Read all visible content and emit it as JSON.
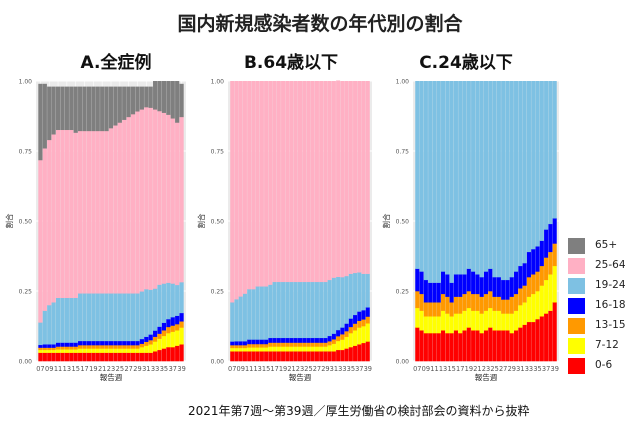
{
  "title": "国内新規感染者数の年代別の割合",
  "source_note": "2021年第7週～第39週／厚生労働省の検討部会の資料から抜粋",
  "chart_data": [
    {
      "type": "bar",
      "stacked": true,
      "title": "A.全症例",
      "xlabel": "報告週",
      "ylabel": "割合",
      "ylim": [
        0,
        1
      ],
      "yticks": [
        "0.00",
        "0.25",
        "0.50",
        "0.75",
        "1.00"
      ],
      "x": [
        7,
        8,
        9,
        10,
        11,
        12,
        13,
        14,
        15,
        16,
        17,
        18,
        19,
        20,
        21,
        22,
        23,
        24,
        25,
        26,
        27,
        28,
        29,
        30,
        31,
        32,
        33,
        34,
        35,
        36,
        37,
        38,
        39
      ],
      "x_tick_labels": [
        "07",
        "09",
        "11",
        "13",
        "15",
        "17",
        "19",
        "21",
        "23",
        "25",
        "27",
        "29",
        "31",
        "33",
        "35",
        "37",
        "39"
      ],
      "series": [
        {
          "name": "0-6",
          "color": "#ff0000",
          "values": [
            0.03,
            0.03,
            0.03,
            0.03,
            0.03,
            0.03,
            0.03,
            0.03,
            0.03,
            0.03,
            0.03,
            0.03,
            0.03,
            0.03,
            0.03,
            0.03,
            0.03,
            0.03,
            0.03,
            0.03,
            0.03,
            0.03,
            0.03,
            0.03,
            0.03,
            0.03,
            0.035,
            0.04,
            0.045,
            0.05,
            0.05,
            0.055,
            0.06
          ]
        },
        {
          "name": "7-12",
          "color": "#ffff00",
          "values": [
            0.01,
            0.01,
            0.01,
            0.01,
            0.012,
            0.012,
            0.012,
            0.012,
            0.012,
            0.015,
            0.015,
            0.015,
            0.015,
            0.015,
            0.015,
            0.015,
            0.015,
            0.015,
            0.015,
            0.015,
            0.015,
            0.015,
            0.015,
            0.02,
            0.025,
            0.03,
            0.035,
            0.04,
            0.045,
            0.05,
            0.055,
            0.055,
            0.06
          ]
        },
        {
          "name": "13-15",
          "color": "#ff9900",
          "values": [
            0.008,
            0.008,
            0.008,
            0.008,
            0.01,
            0.01,
            0.01,
            0.01,
            0.01,
            0.012,
            0.012,
            0.012,
            0.012,
            0.012,
            0.012,
            0.012,
            0.012,
            0.012,
            0.012,
            0.012,
            0.012,
            0.012,
            0.012,
            0.012,
            0.014,
            0.015,
            0.017,
            0.018,
            0.02,
            0.022,
            0.022,
            0.022,
            0.022
          ]
        },
        {
          "name": "16-18",
          "color": "#0000ff",
          "values": [
            0.01,
            0.012,
            0.012,
            0.012,
            0.014,
            0.014,
            0.014,
            0.014,
            0.014,
            0.015,
            0.015,
            0.015,
            0.015,
            0.015,
            0.015,
            0.015,
            0.015,
            0.015,
            0.015,
            0.015,
            0.015,
            0.015,
            0.015,
            0.017,
            0.018,
            0.02,
            0.022,
            0.025,
            0.027,
            0.028,
            0.03,
            0.03,
            0.03
          ]
        },
        {
          "name": "19-24",
          "color": "#7ec1e3",
          "values": [
            0.08,
            0.12,
            0.14,
            0.15,
            0.16,
            0.16,
            0.16,
            0.16,
            0.16,
            0.17,
            0.17,
            0.17,
            0.17,
            0.17,
            0.17,
            0.17,
            0.17,
            0.17,
            0.17,
            0.17,
            0.17,
            0.17,
            0.17,
            0.17,
            0.17,
            0.16,
            0.15,
            0.15,
            0.14,
            0.13,
            0.12,
            0.11,
            0.11
          ]
        },
        {
          "name": "25-64",
          "color": "#ffb0c4",
          "values": [
            0.58,
            0.58,
            0.59,
            0.6,
            0.6,
            0.6,
            0.6,
            0.6,
            0.59,
            0.58,
            0.58,
            0.58,
            0.58,
            0.58,
            0.58,
            0.58,
            0.59,
            0.6,
            0.61,
            0.62,
            0.63,
            0.64,
            0.65,
            0.65,
            0.65,
            0.65,
            0.64,
            0.62,
            0.61,
            0.6,
            0.59,
            0.58,
            0.59
          ]
        },
        {
          "name": "65+",
          "color": "#7f7f7f",
          "values": [
            0.272,
            0.23,
            0.19,
            0.17,
            0.154,
            0.154,
            0.154,
            0.154,
            0.164,
            0.158,
            0.158,
            0.158,
            0.158,
            0.158,
            0.158,
            0.158,
            0.148,
            0.138,
            0.128,
            0.118,
            0.108,
            0.098,
            0.088,
            0.081,
            0.073,
            0.075,
            0.101,
            0.107,
            0.113,
            0.12,
            0.133,
            0.148,
            0.118
          ]
        }
      ]
    },
    {
      "type": "bar",
      "stacked": true,
      "title": "B.64歳以下",
      "xlabel": "報告週",
      "ylabel": "割合",
      "ylim": [
        0,
        1
      ],
      "yticks": [
        "0.00",
        "0.25",
        "0.50",
        "0.75",
        "1.00"
      ],
      "x": [
        7,
        8,
        9,
        10,
        11,
        12,
        13,
        14,
        15,
        16,
        17,
        18,
        19,
        20,
        21,
        22,
        23,
        24,
        25,
        26,
        27,
        28,
        29,
        30,
        31,
        32,
        33,
        34,
        35,
        36,
        37,
        38,
        39
      ],
      "x_tick_labels": [
        "07",
        "09",
        "11",
        "13",
        "15",
        "17",
        "19",
        "21",
        "23",
        "25",
        "27",
        "29",
        "31",
        "33",
        "35",
        "37",
        "39"
      ],
      "series": [
        {
          "name": "0-6",
          "color": "#ff0000",
          "values": [
            0.035,
            0.035,
            0.035,
            0.035,
            0.035,
            0.035,
            0.035,
            0.035,
            0.035,
            0.035,
            0.035,
            0.035,
            0.035,
            0.035,
            0.035,
            0.035,
            0.035,
            0.035,
            0.035,
            0.035,
            0.035,
            0.035,
            0.035,
            0.035,
            0.035,
            0.04,
            0.04,
            0.045,
            0.05,
            0.055,
            0.06,
            0.065,
            0.07
          ]
        },
        {
          "name": "7-12",
          "color": "#ffff00",
          "values": [
            0.012,
            0.012,
            0.012,
            0.012,
            0.014,
            0.014,
            0.014,
            0.014,
            0.014,
            0.017,
            0.017,
            0.017,
            0.017,
            0.017,
            0.017,
            0.017,
            0.017,
            0.017,
            0.017,
            0.017,
            0.017,
            0.017,
            0.017,
            0.022,
            0.027,
            0.032,
            0.037,
            0.042,
            0.05,
            0.055,
            0.06,
            0.06,
            0.065
          ]
        },
        {
          "name": "13-15",
          "color": "#ff9900",
          "values": [
            0.01,
            0.01,
            0.01,
            0.01,
            0.012,
            0.012,
            0.012,
            0.012,
            0.012,
            0.014,
            0.014,
            0.014,
            0.014,
            0.014,
            0.014,
            0.014,
            0.014,
            0.014,
            0.014,
            0.014,
            0.014,
            0.014,
            0.014,
            0.014,
            0.016,
            0.017,
            0.019,
            0.02,
            0.022,
            0.024,
            0.024,
            0.024,
            0.024
          ]
        },
        {
          "name": "16-18",
          "color": "#0000ff",
          "values": [
            0.013,
            0.014,
            0.014,
            0.014,
            0.016,
            0.016,
            0.016,
            0.016,
            0.016,
            0.017,
            0.017,
            0.017,
            0.017,
            0.017,
            0.017,
            0.017,
            0.017,
            0.017,
            0.017,
            0.017,
            0.017,
            0.017,
            0.017,
            0.019,
            0.02,
            0.022,
            0.024,
            0.027,
            0.03,
            0.031,
            0.033,
            0.033,
            0.033
          ]
        },
        {
          "name": "19-24",
          "color": "#7ec1e3",
          "values": [
            0.14,
            0.15,
            0.16,
            0.17,
            0.18,
            0.18,
            0.19,
            0.19,
            0.19,
            0.19,
            0.2,
            0.2,
            0.2,
            0.2,
            0.2,
            0.2,
            0.2,
            0.2,
            0.2,
            0.2,
            0.2,
            0.2,
            0.2,
            0.2,
            0.2,
            0.19,
            0.18,
            0.17,
            0.16,
            0.15,
            0.14,
            0.13,
            0.12
          ]
        },
        {
          "name": "25-64",
          "color": "#ffb0c4",
          "values": [
            0.79,
            0.779,
            0.769,
            0.759,
            0.743,
            0.743,
            0.733,
            0.733,
            0.733,
            0.727,
            0.717,
            0.717,
            0.717,
            0.717,
            0.717,
            0.717,
            0.717,
            0.717,
            0.717,
            0.717,
            0.717,
            0.717,
            0.717,
            0.71,
            0.702,
            0.701,
            0.7,
            0.696,
            0.688,
            0.685,
            0.683,
            0.688,
            0.688
          ]
        }
      ]
    },
    {
      "type": "bar",
      "stacked": true,
      "title": "C.24歳以下",
      "xlabel": "報告週",
      "ylabel": "割合",
      "ylim": [
        0,
        1
      ],
      "yticks": [
        "0.00",
        "0.25",
        "0.50",
        "0.75",
        "1.00"
      ],
      "x": [
        7,
        8,
        9,
        10,
        11,
        12,
        13,
        14,
        15,
        16,
        17,
        18,
        19,
        20,
        21,
        22,
        23,
        24,
        25,
        26,
        27,
        28,
        29,
        30,
        31,
        32,
        33,
        34,
        35,
        36,
        37,
        38,
        39
      ],
      "x_tick_labels": [
        "07",
        "09",
        "11",
        "13",
        "15",
        "17",
        "19",
        "21",
        "23",
        "25",
        "27",
        "29",
        "31",
        "33",
        "35",
        "37",
        "39"
      ],
      "series": [
        {
          "name": "0-6",
          "color": "#ff0000",
          "values": [
            0.12,
            0.11,
            0.1,
            0.1,
            0.1,
            0.1,
            0.11,
            0.1,
            0.1,
            0.11,
            0.1,
            0.11,
            0.12,
            0.11,
            0.11,
            0.1,
            0.11,
            0.12,
            0.11,
            0.11,
            0.11,
            0.11,
            0.1,
            0.11,
            0.12,
            0.13,
            0.14,
            0.14,
            0.15,
            0.16,
            0.17,
            0.18,
            0.21
          ]
        },
        {
          "name": "7-12",
          "color": "#ffff00",
          "values": [
            0.07,
            0.07,
            0.06,
            0.06,
            0.06,
            0.06,
            0.07,
            0.07,
            0.06,
            0.06,
            0.07,
            0.07,
            0.07,
            0.07,
            0.07,
            0.07,
            0.07,
            0.07,
            0.07,
            0.07,
            0.06,
            0.06,
            0.07,
            0.07,
            0.08,
            0.08,
            0.09,
            0.1,
            0.1,
            0.11,
            0.12,
            0.13,
            0.13
          ]
        },
        {
          "name": "13-15",
          "color": "#ff9900",
          "values": [
            0.06,
            0.06,
            0.05,
            0.05,
            0.05,
            0.05,
            0.06,
            0.06,
            0.05,
            0.06,
            0.06,
            0.06,
            0.06,
            0.06,
            0.06,
            0.06,
            0.06,
            0.06,
            0.05,
            0.05,
            0.05,
            0.05,
            0.06,
            0.06,
            0.06,
            0.06,
            0.07,
            0.07,
            0.07,
            0.07,
            0.08,
            0.08,
            0.08
          ]
        },
        {
          "name": "16-18",
          "color": "#0000ff",
          "values": [
            0.08,
            0.08,
            0.08,
            0.07,
            0.07,
            0.07,
            0.08,
            0.08,
            0.07,
            0.08,
            0.08,
            0.07,
            0.08,
            0.08,
            0.07,
            0.07,
            0.08,
            0.08,
            0.07,
            0.07,
            0.07,
            0.07,
            0.07,
            0.08,
            0.08,
            0.08,
            0.09,
            0.09,
            0.09,
            0.09,
            0.1,
            0.1,
            0.09
          ]
        },
        {
          "name": "19-24",
          "color": "#7ec1e3",
          "values": [
            0.67,
            0.68,
            0.71,
            0.72,
            0.72,
            0.72,
            0.68,
            0.69,
            0.72,
            0.69,
            0.69,
            0.69,
            0.67,
            0.68,
            0.69,
            0.7,
            0.68,
            0.67,
            0.7,
            0.7,
            0.71,
            0.71,
            0.7,
            0.68,
            0.66,
            0.65,
            0.61,
            0.6,
            0.59,
            0.57,
            0.53,
            0.51,
            0.49
          ]
        }
      ]
    }
  ],
  "legend": [
    {
      "label": "65+",
      "color": "#7f7f7f"
    },
    {
      "label": "25-64",
      "color": "#ffb0c4"
    },
    {
      "label": "19-24",
      "color": "#7ec1e3"
    },
    {
      "label": "16-18",
      "color": "#0000ff"
    },
    {
      "label": "13-15",
      "color": "#ff9900"
    },
    {
      "label": "7-12",
      "color": "#ffff00"
    },
    {
      "label": "0-6",
      "color": "#ff0000"
    }
  ]
}
